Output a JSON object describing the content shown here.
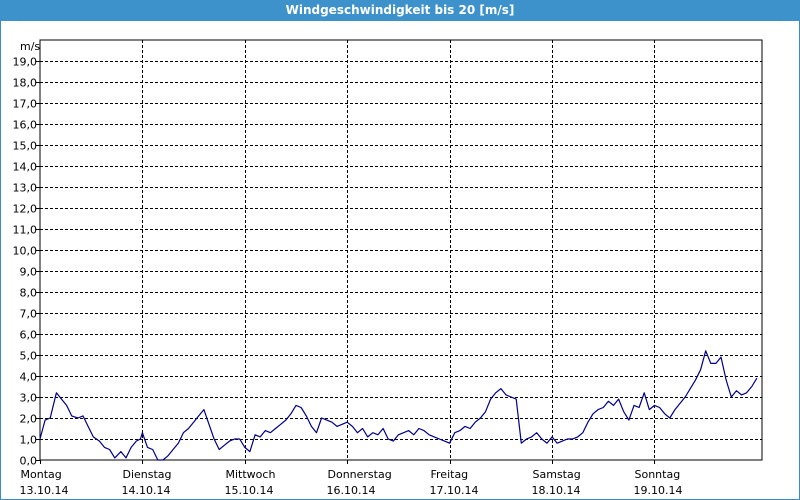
{
  "window": {
    "title": "Windgeschwindigkeit bis 20 [m/s]"
  },
  "colors": {
    "title_bar": "#3d92cc",
    "line": "#00008b",
    "grid": "#000000",
    "frame": "#3c8dc4"
  },
  "chart_data": {
    "type": "line",
    "title": "Windgeschwindigkeit bis 20 [m/s]",
    "ylabel": "m/s",
    "xlabel": "",
    "ylim": [
      0,
      20
    ],
    "xlim": [
      0,
      7.05
    ],
    "grid": true,
    "y_ticks": [
      "0,0",
      "1,0",
      "2,0",
      "3,0",
      "4,0",
      "5,0",
      "6,0",
      "7,0",
      "8,0",
      "9,0",
      "10,0",
      "11,0",
      "12,0",
      "13,0",
      "14,0",
      "15,0",
      "16,0",
      "17,0",
      "18,0",
      "19,0"
    ],
    "x_ticks": [
      {
        "day": "Montag",
        "date": "13.10.14",
        "x": 0
      },
      {
        "day": "Dienstag",
        "date": "14.10.14",
        "x": 1
      },
      {
        "day": "Mittwoch",
        "date": "15.10.14",
        "x": 2
      },
      {
        "day": "Donnerstag",
        "date": "16.10.14",
        "x": 3
      },
      {
        "day": "Freitag",
        "date": "17.10.14",
        "x": 4
      },
      {
        "day": "Samstag",
        "date": "18.10.14",
        "x": 5
      },
      {
        "day": "Sonntag",
        "date": "19.10.14",
        "x": 6
      }
    ],
    "series": [
      {
        "color": "#00008b",
        "points": [
          [
            0.0,
            1.0
          ],
          [
            0.05,
            1.9
          ],
          [
            0.1,
            2.0
          ],
          [
            0.16,
            3.2
          ],
          [
            0.21,
            2.9
          ],
          [
            0.26,
            2.6
          ],
          [
            0.31,
            2.1
          ],
          [
            0.37,
            2.0
          ],
          [
            0.42,
            2.1
          ],
          [
            0.47,
            1.6
          ],
          [
            0.52,
            1.1
          ],
          [
            0.58,
            0.9
          ],
          [
            0.63,
            0.6
          ],
          [
            0.68,
            0.5
          ],
          [
            0.73,
            0.1
          ],
          [
            0.79,
            0.4
          ],
          [
            0.84,
            0.1
          ],
          [
            0.89,
            0.6
          ],
          [
            0.94,
            0.9
          ],
          [
            0.98,
            1.0
          ],
          [
            1.0,
            1.3
          ],
          [
            1.05,
            0.6
          ],
          [
            1.1,
            0.5
          ],
          [
            1.15,
            0.0
          ],
          [
            1.2,
            0.0
          ],
          [
            1.25,
            0.2
          ],
          [
            1.3,
            0.5
          ],
          [
            1.35,
            0.8
          ],
          [
            1.4,
            1.3
          ],
          [
            1.45,
            1.5
          ],
          [
            1.5,
            1.8
          ],
          [
            1.55,
            2.1
          ],
          [
            1.6,
            2.4
          ],
          [
            1.65,
            1.7
          ],
          [
            1.7,
            1.0
          ],
          [
            1.75,
            0.5
          ],
          [
            1.8,
            0.7
          ],
          [
            1.85,
            0.9
          ],
          [
            1.9,
            1.0
          ],
          [
            1.95,
            1.0
          ],
          [
            2.0,
            0.6
          ],
          [
            2.05,
            0.4
          ],
          [
            2.1,
            1.2
          ],
          [
            2.15,
            1.1
          ],
          [
            2.2,
            1.4
          ],
          [
            2.25,
            1.3
          ],
          [
            2.3,
            1.5
          ],
          [
            2.35,
            1.7
          ],
          [
            2.4,
            1.9
          ],
          [
            2.45,
            2.2
          ],
          [
            2.5,
            2.6
          ],
          [
            2.55,
            2.5
          ],
          [
            2.6,
            2.1
          ],
          [
            2.65,
            1.6
          ],
          [
            2.7,
            1.3
          ],
          [
            2.75,
            2.0
          ],
          [
            2.8,
            1.9
          ],
          [
            2.85,
            1.8
          ],
          [
            2.9,
            1.6
          ],
          [
            2.95,
            1.7
          ],
          [
            3.0,
            1.8
          ],
          [
            3.05,
            1.6
          ],
          [
            3.1,
            1.3
          ],
          [
            3.15,
            1.5
          ],
          [
            3.2,
            1.1
          ],
          [
            3.25,
            1.3
          ],
          [
            3.3,
            1.2
          ],
          [
            3.35,
            1.5
          ],
          [
            3.4,
            1.0
          ],
          [
            3.45,
            0.9
          ],
          [
            3.5,
            1.2
          ],
          [
            3.55,
            1.3
          ],
          [
            3.6,
            1.4
          ],
          [
            3.65,
            1.2
          ],
          [
            3.7,
            1.5
          ],
          [
            3.75,
            1.4
          ],
          [
            3.8,
            1.2
          ],
          [
            3.85,
            1.1
          ],
          [
            3.9,
            1.0
          ],
          [
            3.95,
            0.9
          ],
          [
            4.0,
            0.8
          ],
          [
            4.05,
            1.3
          ],
          [
            4.1,
            1.4
          ],
          [
            4.15,
            1.6
          ],
          [
            4.2,
            1.5
          ],
          [
            4.25,
            1.8
          ],
          [
            4.3,
            2.0
          ],
          [
            4.35,
            2.3
          ],
          [
            4.4,
            2.9
          ],
          [
            4.45,
            3.2
          ],
          [
            4.5,
            3.4
          ],
          [
            4.55,
            3.1
          ],
          [
            4.6,
            3.0
          ],
          [
            4.65,
            2.9
          ],
          [
            4.7,
            0.8
          ],
          [
            4.75,
            1.0
          ],
          [
            4.8,
            1.1
          ],
          [
            4.85,
            1.3
          ],
          [
            4.9,
            1.0
          ],
          [
            4.95,
            0.8
          ],
          [
            5.0,
            1.1
          ],
          [
            5.05,
            0.8
          ],
          [
            5.1,
            0.9
          ],
          [
            5.15,
            1.0
          ],
          [
            5.2,
            1.0
          ],
          [
            5.25,
            1.1
          ],
          [
            5.3,
            1.3
          ],
          [
            5.35,
            1.8
          ],
          [
            5.4,
            2.2
          ],
          [
            5.45,
            2.4
          ],
          [
            5.5,
            2.5
          ],
          [
            5.55,
            2.8
          ],
          [
            5.6,
            2.6
          ],
          [
            5.65,
            2.9
          ],
          [
            5.7,
            2.3
          ],
          [
            5.75,
            1.9
          ],
          [
            5.8,
            2.6
          ],
          [
            5.85,
            2.5
          ],
          [
            5.9,
            3.2
          ],
          [
            5.95,
            2.4
          ],
          [
            6.0,
            2.6
          ],
          [
            6.05,
            2.5
          ],
          [
            6.1,
            2.2
          ],
          [
            6.15,
            2.0
          ],
          [
            6.2,
            2.4
          ],
          [
            6.25,
            2.7
          ],
          [
            6.3,
            3.0
          ],
          [
            6.35,
            3.4
          ],
          [
            6.4,
            3.8
          ],
          [
            6.45,
            4.3
          ],
          [
            6.5,
            5.2
          ],
          [
            6.55,
            4.6
          ],
          [
            6.6,
            4.6
          ],
          [
            6.65,
            4.9
          ],
          [
            6.7,
            3.8
          ],
          [
            6.75,
            3.0
          ],
          [
            6.8,
            3.3
          ],
          [
            6.85,
            3.1
          ],
          [
            6.9,
            3.2
          ],
          [
            6.95,
            3.5
          ],
          [
            7.0,
            3.9
          ]
        ]
      }
    ]
  }
}
